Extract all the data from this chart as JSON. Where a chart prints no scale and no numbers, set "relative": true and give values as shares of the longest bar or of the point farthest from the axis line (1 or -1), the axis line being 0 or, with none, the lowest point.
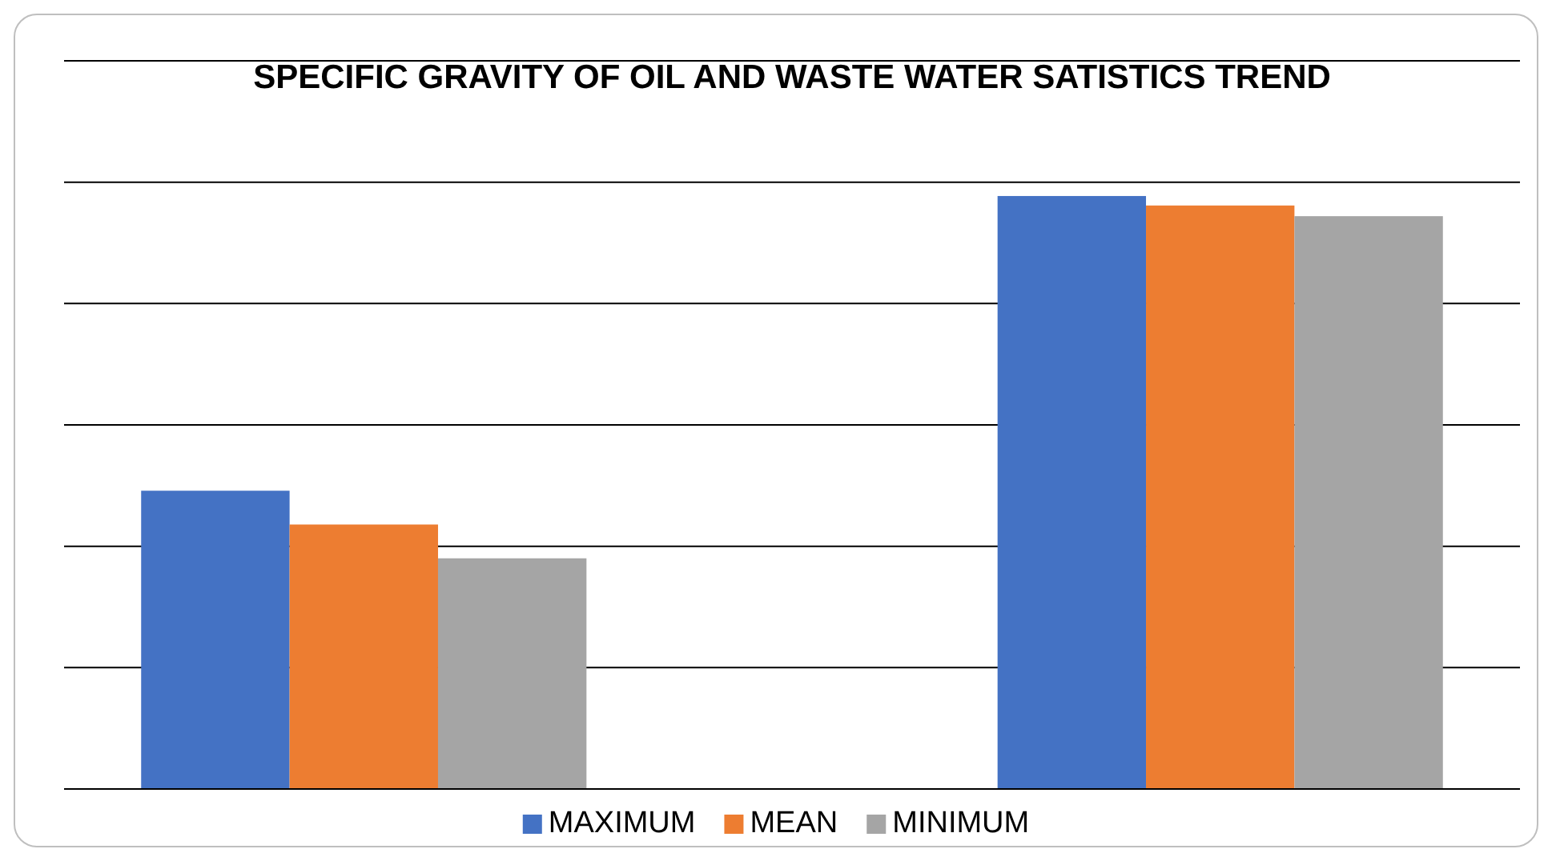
{
  "chart_data": {
    "type": "bar",
    "title": "SPECIFIC GRAVITY OF OIL AND WASTE WATER SATISTICS TREND",
    "categories": [
      null,
      null
    ],
    "relative": true,
    "grid": "y",
    "legend": "bottom",
    "series": [
      {
        "name": "MAXIMUM",
        "color": "#4472c4",
        "values": [
          0.503,
          1
        ]
      },
      {
        "name": "MEAN",
        "color": "#ed7d31",
        "values": [
          0.446,
          0.984
        ]
      },
      {
        "name": "MINIMUM",
        "color": "#a5a5a5",
        "values": [
          0.389,
          0.966
        ]
      }
    ]
  }
}
